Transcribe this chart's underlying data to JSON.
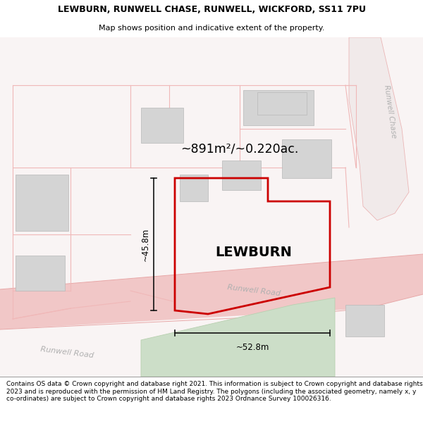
{
  "title_line1": "LEWBURN, RUNWELL CHASE, RUNWELL, WICKFORD, SS11 7PU",
  "title_line2": "Map shows position and indicative extent of the property.",
  "footer_text": "Contains OS data © Crown copyright and database right 2021. This information is subject to Crown copyright and database rights 2023 and is reproduced with the permission of HM Land Registry. The polygons (including the associated geometry, namely x, y co-ordinates) are subject to Crown copyright and database rights 2023 Ordnance Survey 100026316.",
  "area_label": "~891m²/~0.220ac.",
  "property_name": "LEWBURN",
  "dim_horiz": "~52.8m",
  "dim_vert": "~45.8m",
  "road_label_left": "Runwell Road",
  "road_label_mid": "Runwell Road",
  "road_label_chase": "Runwell Chase",
  "bg_color": "#ffffff",
  "map_bg": "#f9f4f4",
  "faint_line": "#f0b8b8",
  "road_fill": "#f0c0c0",
  "road_edge": "#e8a8a8",
  "property_color": "#cc0000",
  "property_lw": 2.0,
  "bld_fill": "#d4d4d4",
  "bld_edge": "#b8b8b8",
  "green_fill": "#ccdec8",
  "green_edge": "#b8d0b0",
  "dim_color": "#111111",
  "road_text_color": "#b0b0b0",
  "title_fontsize": 9.0,
  "subtitle_fontsize": 8.0,
  "footer_fontsize": 6.5,
  "area_fontsize": 12.5,
  "name_fontsize": 14.0,
  "dim_fontsize": 8.5,
  "road_fontsize": 8.0,
  "chase_fontsize": 7.5
}
